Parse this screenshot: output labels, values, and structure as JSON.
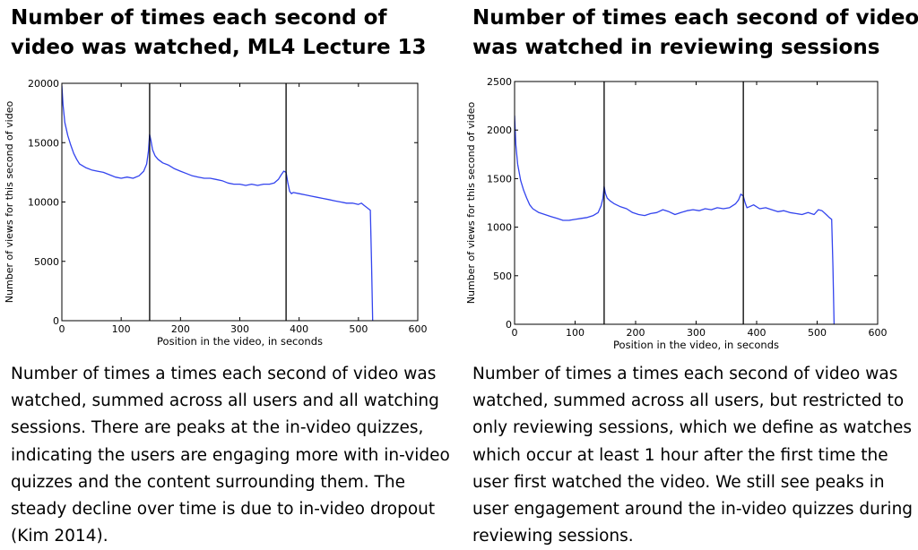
{
  "panels": [
    {
      "title_line1": "Number of times each second of",
      "title_line2": "video was watched, ML4 Lecture 13",
      "caption": "Number of times a times each second of video was watched, summed across all users and all watching sessions. There are peaks at the in-video quizzes, indicating the users are engaging more with in-video quizzes and the content surrounding them. The steady decline over time is due to in-video dropout (Kim 2014)."
    },
    {
      "title_line1": "Number of times each second of video",
      "title_line2": "was watched in reviewing sessions",
      "caption": "Number of times a times each second of video was watched, summed across all users, but restricted to only reviewing sessions, which we define as watches which occur at least 1 hour after the first time the user first watched the video. We still see peaks in user engagement around the in-video quizzes during reviewing sessions."
    }
  ],
  "chart_data": [
    {
      "type": "line",
      "xlabel": "Position in the video, in seconds",
      "ylabel": "Number of views for this second of video",
      "xlim": [
        0,
        600
      ],
      "ylim": [
        0,
        20000
      ],
      "xticks": [
        0,
        100,
        200,
        300,
        400,
        500,
        600
      ],
      "yticks": [
        0,
        5000,
        10000,
        15000,
        20000
      ],
      "grid": false,
      "vertical_lines": [
        148,
        378
      ],
      "line_color": "#3344ee",
      "series": [
        {
          "x": [
            0,
            2,
            5,
            10,
            15,
            20,
            25,
            30,
            40,
            50,
            60,
            70,
            80,
            90,
            100,
            110,
            120,
            130,
            138,
            143,
            146,
            148,
            150,
            153,
            157,
            162,
            170,
            180,
            190,
            200,
            210,
            220,
            230,
            240,
            250,
            260,
            270,
            280,
            290,
            300,
            310,
            320,
            330,
            340,
            350,
            358,
            365,
            370,
            374,
            378,
            381,
            384,
            387,
            390,
            400,
            410,
            420,
            430,
            440,
            450,
            460,
            470,
            480,
            490,
            500,
            505,
            510,
            515,
            520,
            522,
            524
          ],
          "y": [
            19800,
            18200,
            16700,
            15600,
            14800,
            14100,
            13600,
            13200,
            12900,
            12700,
            12600,
            12500,
            12300,
            12100,
            12000,
            12100,
            12000,
            12200,
            12600,
            13200,
            14300,
            15700,
            15200,
            14400,
            13900,
            13600,
            13300,
            13100,
            12800,
            12600,
            12400,
            12200,
            12100,
            12000,
            12000,
            11900,
            11800,
            11600,
            11500,
            11500,
            11400,
            11500,
            11400,
            11500,
            11500,
            11600,
            11900,
            12300,
            12600,
            12500,
            11600,
            10900,
            10700,
            10800,
            10700,
            10600,
            10500,
            10400,
            10300,
            10200,
            10100,
            10000,
            9900,
            9900,
            9800,
            9900,
            9700,
            9500,
            9300,
            5000,
            0
          ]
        }
      ]
    },
    {
      "type": "line",
      "xlabel": "Position in the video, in seconds",
      "ylabel": "Number of views for this second of video",
      "xlim": [
        0,
        600
      ],
      "ylim": [
        0,
        2500
      ],
      "xticks": [
        0,
        100,
        200,
        300,
        400,
        500,
        600
      ],
      "yticks": [
        0,
        500,
        1000,
        1500,
        2000,
        2500
      ],
      "grid": false,
      "vertical_lines": [
        148,
        378
      ],
      "line_color": "#3344ee",
      "series": [
        {
          "x": [
            0,
            2,
            5,
            10,
            15,
            20,
            25,
            30,
            40,
            50,
            60,
            70,
            80,
            90,
            100,
            110,
            120,
            130,
            138,
            143,
            146,
            148,
            150,
            153,
            158,
            165,
            175,
            185,
            195,
            205,
            215,
            225,
            235,
            245,
            255,
            265,
            275,
            285,
            295,
            305,
            315,
            325,
            335,
            345,
            355,
            365,
            370,
            374,
            378,
            381,
            384,
            388,
            395,
            405,
            415,
            425,
            435,
            445,
            455,
            465,
            475,
            485,
            495,
            502,
            508,
            515,
            520,
            524,
            526,
            528
          ],
          "y": [
            2150,
            1850,
            1650,
            1480,
            1380,
            1300,
            1230,
            1190,
            1150,
            1130,
            1110,
            1090,
            1070,
            1070,
            1080,
            1090,
            1100,
            1120,
            1150,
            1220,
            1300,
            1420,
            1350,
            1300,
            1270,
            1240,
            1210,
            1190,
            1150,
            1130,
            1120,
            1140,
            1150,
            1180,
            1160,
            1130,
            1150,
            1170,
            1180,
            1170,
            1190,
            1180,
            1200,
            1190,
            1200,
            1240,
            1280,
            1340,
            1320,
            1250,
            1200,
            1210,
            1230,
            1190,
            1200,
            1180,
            1160,
            1170,
            1150,
            1140,
            1130,
            1150,
            1130,
            1180,
            1170,
            1130,
            1100,
            1080,
            600,
            0
          ]
        }
      ]
    }
  ]
}
